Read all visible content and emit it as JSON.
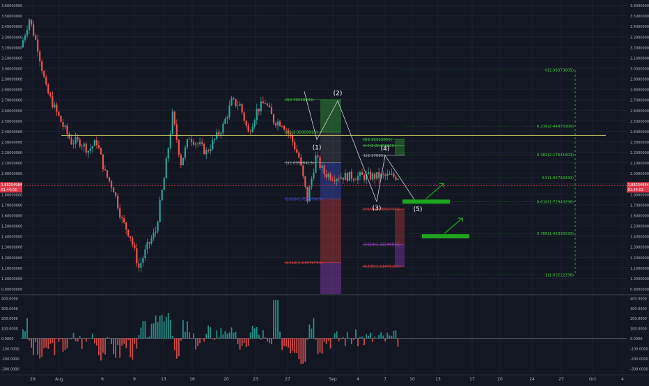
{
  "chart_data": [
    {
      "type": "line",
      "subtype": "candlestick",
      "title": "",
      "xlabel": "",
      "ylabel": "",
      "x_ticks": [
        "29",
        "Aug",
        "6",
        "9",
        "13",
        "16",
        "20",
        "23",
        "27",
        "Sep",
        "4",
        "7",
        "10",
        "13",
        "17",
        "20",
        "24",
        "27",
        "Oct",
        "4"
      ],
      "y_ticks": [
        "3.60000000",
        "3.50000000",
        "3.40000000",
        "3.30000000",
        "3.20000000",
        "3.10000000",
        "3.00000000",
        "2.90000000",
        "2.80000000",
        "2.70000000",
        "2.60000000",
        "2.50000000",
        "2.40000000",
        "2.30000000",
        "2.20000000",
        "2.10000000",
        "2.00000000",
        "1.90000000",
        "1.80000000",
        "1.70000000",
        "1.60000000",
        "1.50000000",
        "1.40000000",
        "1.30000000",
        "1.20000000",
        "1.10000000",
        "1.00000000",
        "0.90000000"
      ],
      "ylim": [
        0.85,
        3.65
      ],
      "price_path_days": [
        0,
        1,
        2,
        3,
        4,
        5,
        6,
        7,
        8,
        9,
        10,
        11,
        12,
        13,
        14,
        15,
        16,
        17,
        18,
        19,
        20,
        21,
        22,
        23,
        24,
        25,
        26,
        27,
        28,
        29,
        30,
        31,
        32,
        33,
        34,
        35,
        36,
        37,
        38,
        39,
        40,
        41
      ],
      "price_path_values": [
        3.2,
        3.47,
        3.2,
        2.8,
        2.62,
        2.45,
        2.3,
        2.3,
        2.22,
        2.3,
        2.0,
        1.85,
        1.55,
        1.4,
        1.1,
        1.3,
        1.45,
        1.95,
        2.55,
        2.1,
        2.35,
        2.28,
        2.2,
        2.32,
        2.45,
        2.68,
        2.65,
        2.38,
        2.6,
        2.68,
        2.5,
        2.48,
        2.35,
        2.15,
        1.75,
        2.15,
        2.0,
        1.97,
        1.97,
        1.97,
        1.97,
        1.97
      ],
      "current_price_label": "1.88254984",
      "countdown_label": "01:44:03",
      "resistance_level": 2.36,
      "fib_retracement": {
        "levels": [
          {
            "label": "0(2.98373605)",
            "price": 2.98373605
          },
          {
            "label": "0.236(2.44875300)",
            "price": 2.448753
          },
          {
            "label": "0.382(2.17641603)",
            "price": 2.17641603
          },
          {
            "label": "0.5(1.95792432)",
            "price": 1.95792432
          },
          {
            "label": "0.618(1.72943296)",
            "price": 1.72943296
          },
          {
            "label": "0.786(1.42836030)",
            "price": 1.4283603
          },
          {
            "label": "1(1.03212296)",
            "price": 1.03212296
          }
        ]
      },
      "fib_extension_wave3": {
        "levels": [
          {
            "label": "0(2.70068849)",
            "price": 2.70068849
          },
          {
            "label": "0.5(2.39358915)",
            "price": 2.39358915
          },
          {
            "label": "1(2.09996413)",
            "price": 2.09996413
          },
          {
            "label": "1.618(1.75597969)",
            "price": 1.75597969
          },
          {
            "label": "2.618(1.14979744)",
            "price": 1.14979744
          }
        ]
      },
      "fib_extension_wave5": {
        "levels": [
          {
            "label": "0(2.32313055)",
            "price": 2.32313055
          },
          {
            "label": "0.5(2.26468660)",
            "price": 2.2646866
          },
          {
            "label": "1(2.17065)",
            "price": 2.17065
          },
          {
            "label": "2.618(1.65927723)",
            "price": 1.65927723
          },
          {
            "label": "3.618(1.32548935)",
            "price": 1.32548935
          },
          {
            "label": "4.236(1.11471181)",
            "price": 1.11471181
          }
        ]
      },
      "elliott_waves": [
        {
          "label": "(1)",
          "price": 2.32
        },
        {
          "label": "(2)",
          "price": 2.69
        },
        {
          "label": "(3)",
          "price": 1.73
        },
        {
          "label": "(4)",
          "price": 2.17
        },
        {
          "label": "(5)",
          "price": 1.72
        }
      ],
      "target_zones": [
        {
          "price": 1.73
        },
        {
          "price": 1.4
        }
      ]
    },
    {
      "type": "bar",
      "subtype": "oscillator",
      "ylim": [
        -350,
        420
      ],
      "y_ticks": [
        "400.0000",
        "300.0000",
        "200.0000",
        "100.0000",
        "0.0000",
        "-100.0000",
        "-200.0000",
        "-300.0000"
      ]
    }
  ],
  "colors": {
    "background": "#131722",
    "grid": "#1e2230",
    "axis_text": "#b2b5be",
    "candle_up": "#26a69a",
    "candle_down": "#ef5350",
    "resistance": "#c8c86e",
    "fib_green": "#3ec43e",
    "fib_red": "#e84343",
    "fib_blue": "#4a54e0",
    "fib_purple": "#b04ae0",
    "price_tag": "#e0394a",
    "target": "#1ea51e",
    "label": "#ffffff"
  }
}
